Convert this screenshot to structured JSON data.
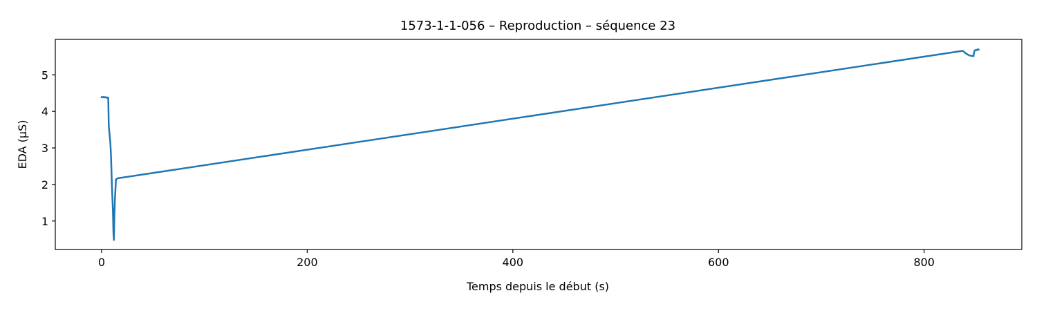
{
  "chart_data": {
    "type": "line",
    "title": "1573-1-1-056 – Reproduction – séquence 23",
    "xlabel": "Temps depuis le début (s)",
    "ylabel": "EDA (µS)",
    "xlim": [
      -45,
      895
    ],
    "ylim": [
      0.22,
      5.97
    ],
    "xticks": [
      0,
      200,
      400,
      600,
      800
    ],
    "yticks": [
      1,
      2,
      3,
      4,
      5
    ],
    "grid": false,
    "color": "#1f77b4",
    "series": [
      {
        "x": [
          0,
          1,
          2,
          3,
          4,
          5,
          6,
          6.5,
          7,
          8,
          8.5,
          9,
          9.5,
          10,
          11,
          11.5,
          12,
          12.5,
          13,
          14,
          16,
          836,
          838,
          840,
          842,
          844,
          846,
          848,
          849,
          850,
          851,
          852,
          853
        ],
        "y": [
          4.39,
          4.38,
          4.4,
          4.38,
          4.39,
          4.37,
          4.38,
          4.37,
          3.6,
          3.3,
          3.15,
          2.9,
          2.5,
          2.0,
          1.3,
          0.7,
          0.48,
          1.2,
          1.6,
          2.14,
          2.17,
          5.65,
          5.65,
          5.6,
          5.56,
          5.53,
          5.52,
          5.51,
          5.66,
          5.68,
          5.67,
          5.7,
          5.69
        ]
      }
    ]
  }
}
